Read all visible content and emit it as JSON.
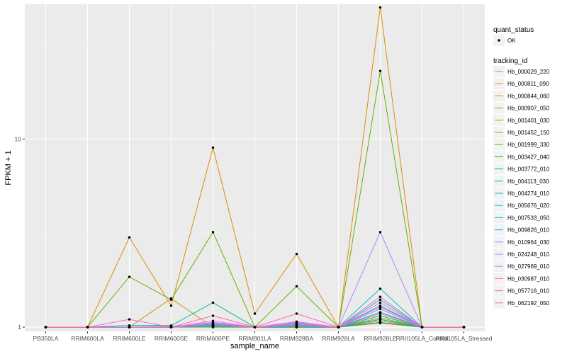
{
  "chart_data": {
    "type": "line",
    "xlabel": "sample_name",
    "ylabel": "FPKM + 1",
    "yscale": "log10",
    "ylim": [
      0.95,
      52
    ],
    "yticks": [
      1,
      10
    ],
    "grid": true,
    "legend_position": "right",
    "categories": [
      "PB350LA",
      "RRIM600LA",
      "RRIM600LE",
      "RRIM600SE",
      "RRIM600PE",
      "RRIM901LA",
      "RRIM928BA",
      "RRIM928LA",
      "RRIM928LE",
      "RRII105LA_Control",
      "RRII105LA_Stressed"
    ],
    "quant_legend": {
      "title": "quant_status",
      "items": [
        "OK"
      ]
    },
    "series_legend_title": "tracking_id",
    "series": [
      {
        "name": "Hb_000029_220",
        "color": "#F8766D",
        "values": [
          1.0,
          1.0,
          1.0,
          1.0,
          1.01,
          1.0,
          1.0,
          1.0,
          1.05,
          1.0,
          1.0
        ]
      },
      {
        "name": "Hb_000811_090",
        "color": "#EC8239",
        "values": [
          1.0,
          1.0,
          1.0,
          1.0,
          1.02,
          1.0,
          1.01,
          1.0,
          1.1,
          1.0,
          1.0
        ]
      },
      {
        "name": "Hb_000844_060",
        "color": "#DB8E00",
        "values": [
          1.0,
          1.0,
          3.0,
          1.3,
          9.0,
          1.18,
          2.45,
          1.0,
          50.0,
          1.0,
          1.0
        ]
      },
      {
        "name": "Hb_000907_050",
        "color": "#C79800",
        "values": [
          1.0,
          1.0,
          1.0,
          1.42,
          1.0,
          1.0,
          1.0,
          1.0,
          1.2,
          1.0,
          1.0
        ]
      },
      {
        "name": "Hb_001401_030",
        "color": "#AEA200",
        "values": [
          1.0,
          1.0,
          1.0,
          1.0,
          1.02,
          1.0,
          1.0,
          1.0,
          1.08,
          1.0,
          1.0
        ]
      },
      {
        "name": "Hb_001452_150",
        "color": "#8FAA00",
        "values": [
          1.0,
          1.0,
          1.0,
          1.0,
          1.0,
          1.0,
          1.0,
          1.0,
          1.12,
          1.0,
          1.0
        ]
      },
      {
        "name": "Hb_001999_330",
        "color": "#64B200",
        "values": [
          1.0,
          1.0,
          1.85,
          1.4,
          3.2,
          1.0,
          1.65,
          1.0,
          23.0,
          1.0,
          1.0
        ]
      },
      {
        "name": "Hb_003427_040",
        "color": "#00B81B",
        "values": [
          1.0,
          1.0,
          1.0,
          1.0,
          1.01,
          1.0,
          1.0,
          1.0,
          1.06,
          1.0,
          1.0
        ]
      },
      {
        "name": "Hb_003772_010",
        "color": "#00BD5C",
        "values": [
          1.0,
          1.0,
          1.0,
          1.0,
          1.03,
          1.0,
          1.02,
          1.0,
          1.15,
          1.0,
          1.0
        ]
      },
      {
        "name": "Hb_004113_030",
        "color": "#00C08E",
        "values": [
          1.0,
          1.0,
          1.02,
          1.02,
          1.35,
          1.0,
          1.04,
          1.0,
          1.3,
          1.0,
          1.0
        ]
      },
      {
        "name": "Hb_004274_010",
        "color": "#00C1B7",
        "values": [
          1.0,
          1.0,
          1.0,
          1.0,
          1.02,
          1.0,
          1.03,
          1.0,
          1.6,
          1.0,
          1.0
        ]
      },
      {
        "name": "Hb_005676_020",
        "color": "#00BDD4",
        "values": [
          1.0,
          1.0,
          1.0,
          1.0,
          1.01,
          1.0,
          1.0,
          1.0,
          1.4,
          1.0,
          1.0
        ]
      },
      {
        "name": "Hb_007533_050",
        "color": "#00B5EE",
        "values": [
          1.0,
          1.0,
          1.02,
          1.01,
          1.04,
          1.0,
          1.05,
          1.0,
          1.2,
          1.0,
          1.0
        ]
      },
      {
        "name": "Hb_009826_010",
        "color": "#00A7FF",
        "values": [
          1.0,
          1.0,
          1.0,
          1.0,
          1.02,
          1.0,
          1.02,
          1.0,
          1.1,
          1.0,
          1.0
        ]
      },
      {
        "name": "Hb_010964_030",
        "color": "#7F96FF",
        "values": [
          1.0,
          1.0,
          1.0,
          1.0,
          1.05,
          1.0,
          1.06,
          1.0,
          1.25,
          1.0,
          1.0
        ]
      },
      {
        "name": "Hb_024248_010",
        "color": "#BC81FF",
        "values": [
          1.0,
          1.0,
          1.0,
          1.0,
          1.03,
          1.0,
          1.04,
          1.0,
          3.2,
          1.0,
          1.0
        ]
      },
      {
        "name": "Hb_027969_010",
        "color": "#E26EF7",
        "values": [
          1.0,
          1.0,
          1.0,
          1.0,
          1.08,
          1.0,
          1.05,
          1.0,
          1.35,
          1.0,
          1.0
        ]
      },
      {
        "name": "Hb_030987_010",
        "color": "#F863DF",
        "values": [
          1.0,
          1.0,
          1.0,
          1.0,
          1.06,
          1.0,
          1.07,
          1.0,
          1.28,
          1.0,
          1.0
        ]
      },
      {
        "name": "Hb_057716_010",
        "color": "#FF62BF",
        "values": [
          1.0,
          1.0,
          1.1,
          1.0,
          1.15,
          1.0,
          1.18,
          1.0,
          1.45,
          1.0,
          1.0
        ]
      },
      {
        "name": "Hb_062192_050",
        "color": "#FF6A9A",
        "values": [
          1.0,
          1.0,
          1.0,
          1.0,
          1.03,
          1.0,
          1.02,
          1.0,
          1.18,
          1.0,
          1.0
        ]
      }
    ]
  }
}
